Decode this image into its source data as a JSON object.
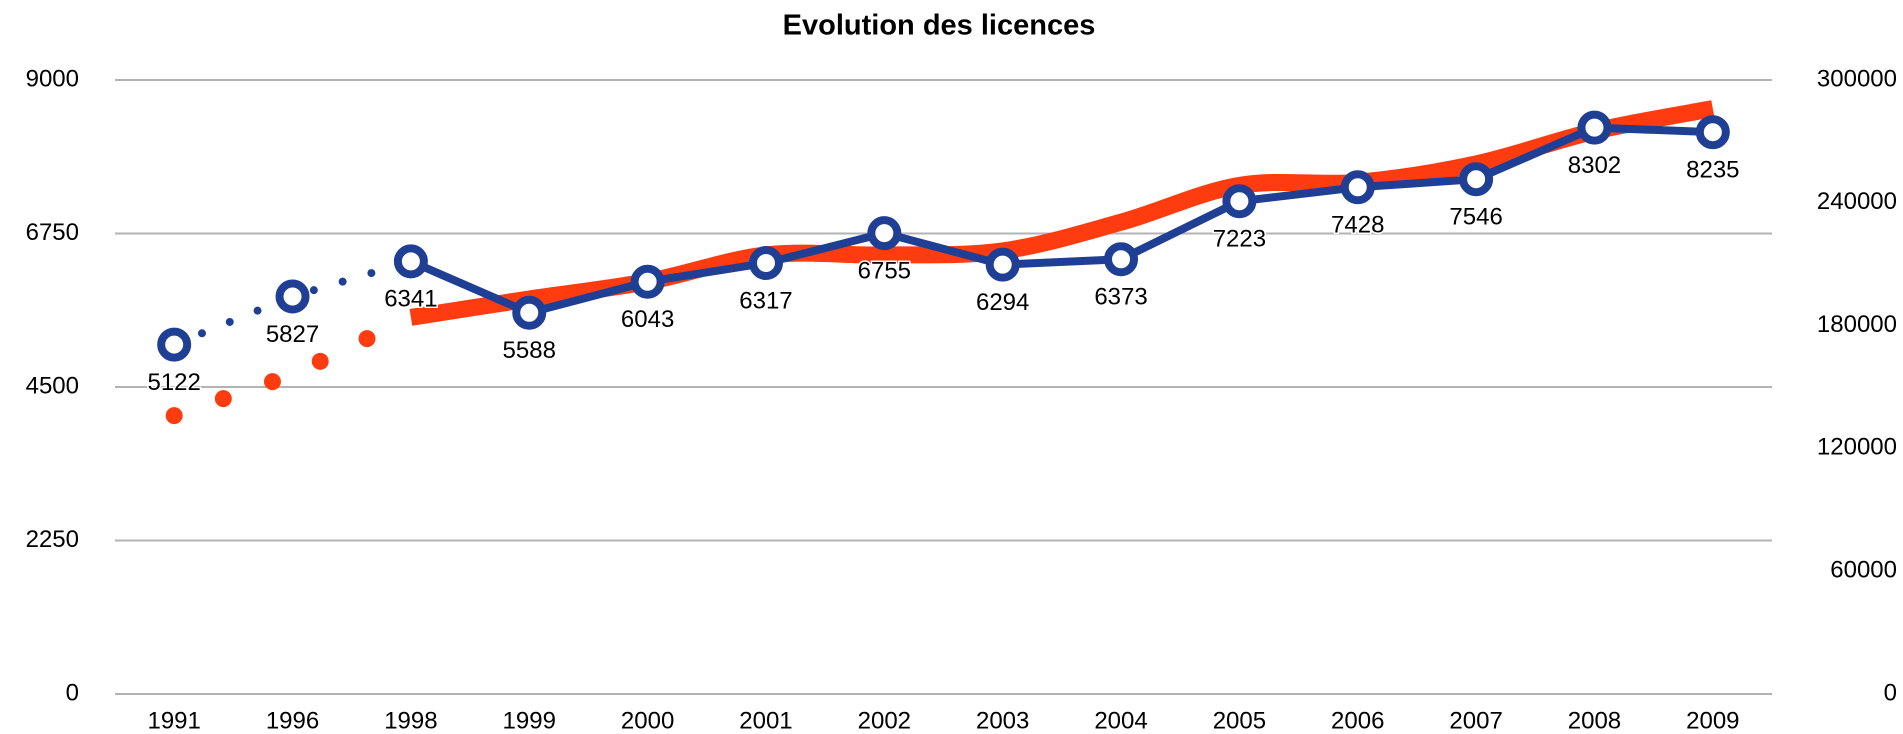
{
  "chart_data": {
    "type": "line",
    "title": "Evolution des licences",
    "categories": [
      "1991",
      "1996",
      "1998",
      "1999",
      "2000",
      "2001",
      "2002",
      "2003",
      "2004",
      "2005",
      "2006",
      "2007",
      "2008",
      "2009"
    ],
    "series": [
      {
        "color": "#1f3f94",
        "values": [
          5122,
          5827,
          6341,
          5588,
          6043,
          6317,
          6755,
          6294,
          6373,
          7223,
          7428,
          7546,
          8302,
          8235
        ]
      },
      {
        "color": "#ff3b10",
        "axis": "y2",
        "values": [
          136000,
          156000,
          184000,
          193000,
          201500,
          214500,
          214500,
          216500,
          230500,
          248500,
          250000,
          259000,
          275000,
          286000
        ]
      }
    ],
    "ylim": [
      0,
      9000
    ],
    "yticks": [
      0,
      2250,
      4500,
      6750,
      9000
    ],
    "y2lim": [
      0,
      300000
    ],
    "y2ticks": [
      0,
      60000,
      120000,
      180000,
      240000,
      300000
    ],
    "grid": true
  }
}
